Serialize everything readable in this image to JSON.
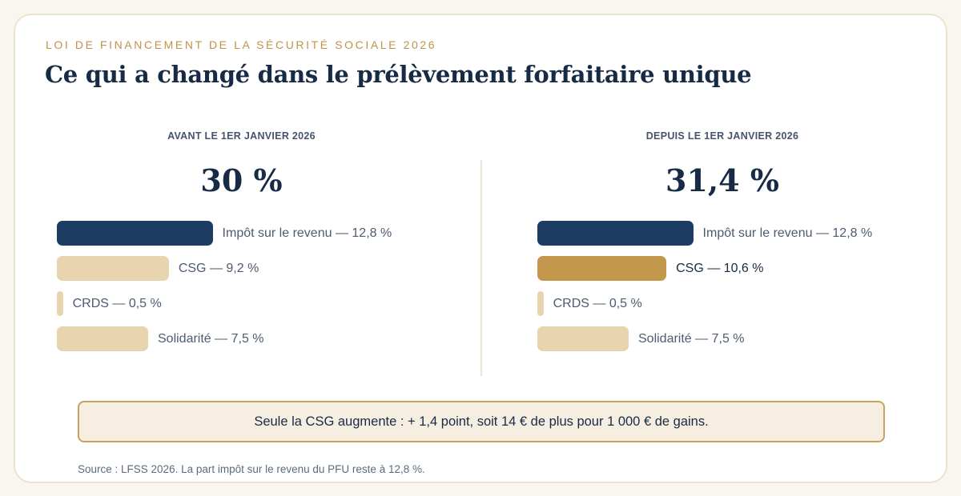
{
  "header": {
    "eyebrow": "LOI DE FINANCEMENT DE LA SÉCURITÉ SOCIALE 2026",
    "title": "Ce qui a changé dans le prélèvement forfaitaire unique"
  },
  "colors": {
    "navy": "#1d3c63",
    "beige": "#e8d4ae",
    "gold": "#c3984c",
    "accent_text": "#c09448"
  },
  "chart_data": [
    {
      "type": "bar",
      "orientation": "horizontal",
      "title": "AVANT LE 1ER JANVIER 2026",
      "total_label": "30 %",
      "total": 30,
      "unit": "%",
      "categories": [
        "Impôt sur le revenu",
        "CSG",
        "CRDS",
        "Solidarité"
      ],
      "values": [
        12.8,
        9.2,
        0.5,
        7.5
      ],
      "labels": [
        "Impôt sur le revenu — 12,8 %",
        "CSG — 9,2 %",
        "CRDS — 0,5 %",
        "Solidarité — 7,5 %"
      ],
      "colors": [
        "#1d3c63",
        "#e8d4ae",
        "#e8d4ae",
        "#e8d4ae"
      ],
      "highlight": [
        false,
        false,
        false,
        false
      ]
    },
    {
      "type": "bar",
      "orientation": "horizontal",
      "title": "DEPUIS LE 1ER JANVIER 2026",
      "total_label": "31,4 %",
      "total": 31.4,
      "unit": "%",
      "categories": [
        "Impôt sur le revenu",
        "CSG",
        "CRDS",
        "Solidarité"
      ],
      "values": [
        12.8,
        10.6,
        0.5,
        7.5
      ],
      "labels": [
        "Impôt sur le revenu — 12,8 %",
        "CSG — 10,6 %",
        "CRDS — 0,5 %",
        "Solidarité — 7,5 %"
      ],
      "colors": [
        "#1d3c63",
        "#c3984c",
        "#e8d4ae",
        "#e8d4ae"
      ],
      "highlight": [
        false,
        true,
        false,
        false
      ]
    }
  ],
  "callout": "Seule la CSG augmente : + 1,4 point, soit 14 € de plus pour 1 000 € de gains.",
  "source": "Source : LFSS 2026. La part impôt sur le revenu du PFU reste à 12,8 %."
}
